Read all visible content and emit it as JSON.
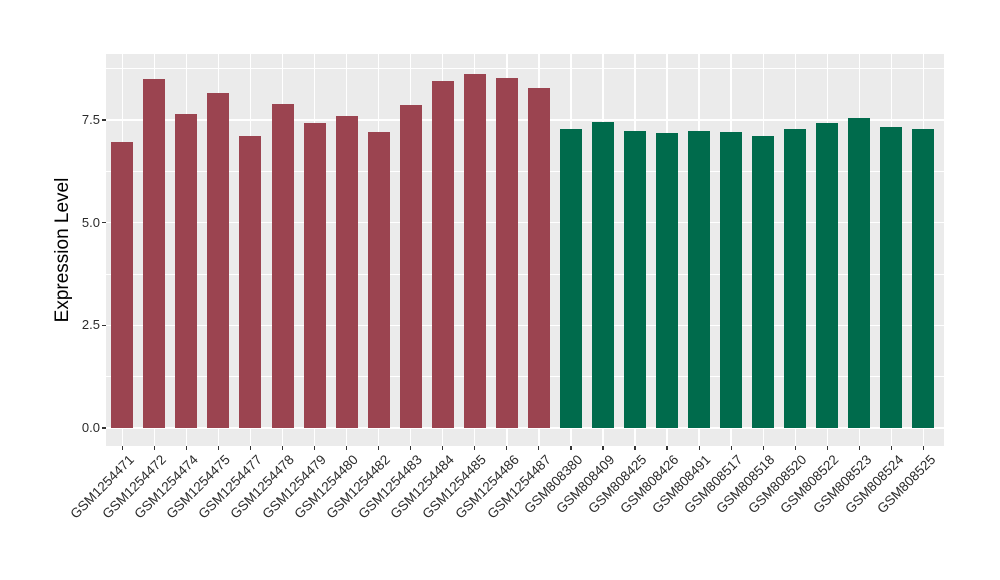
{
  "chart_data": {
    "type": "bar",
    "title": "",
    "xlabel": "",
    "ylabel": "Expression Level",
    "categories": [
      "GSM1254471",
      "GSM1254472",
      "GSM1254474",
      "GSM1254475",
      "GSM1254477",
      "GSM1254478",
      "GSM1254479",
      "GSM1254480",
      "GSM1254482",
      "GSM1254483",
      "GSM1254484",
      "GSM1254485",
      "GSM1254486",
      "GSM1254487",
      "GSM808380",
      "GSM808409",
      "GSM808425",
      "GSM808426",
      "GSM808491",
      "GSM808517",
      "GSM808518",
      "GSM808520",
      "GSM808522",
      "GSM808523",
      "GSM808524",
      "GSM808525"
    ],
    "values": [
      6.96,
      8.5,
      7.65,
      8.16,
      7.12,
      7.9,
      7.43,
      7.6,
      7.21,
      7.86,
      8.45,
      8.62,
      8.53,
      8.27,
      7.28,
      7.45,
      7.24,
      7.19,
      7.22,
      7.2,
      7.11,
      7.28,
      7.43,
      7.55,
      7.34,
      7.28
    ],
    "groups": [
      "maroon",
      "maroon",
      "maroon",
      "maroon",
      "maroon",
      "maroon",
      "maroon",
      "maroon",
      "maroon",
      "maroon",
      "maroon",
      "maroon",
      "maroon",
      "maroon",
      "green",
      "green",
      "green",
      "green",
      "green",
      "green",
      "green",
      "green",
      "green",
      "green",
      "green",
      "green"
    ],
    "group_colors": {
      "maroon": "#9B4450",
      "green": "#006B4C"
    },
    "ylim": [
      0,
      9.1
    ],
    "yticks": [
      0.0,
      2.5,
      5.0,
      7.5
    ],
    "ytick_labels": [
      "0.0",
      "2.5",
      "5.0",
      "7.5"
    ],
    "minor_yticks": [
      1.25,
      3.75,
      6.25,
      8.75
    ],
    "grid": true,
    "legend": "none",
    "panel_bg": "#EBEBEB",
    "grid_color": "#FFFFFF"
  }
}
